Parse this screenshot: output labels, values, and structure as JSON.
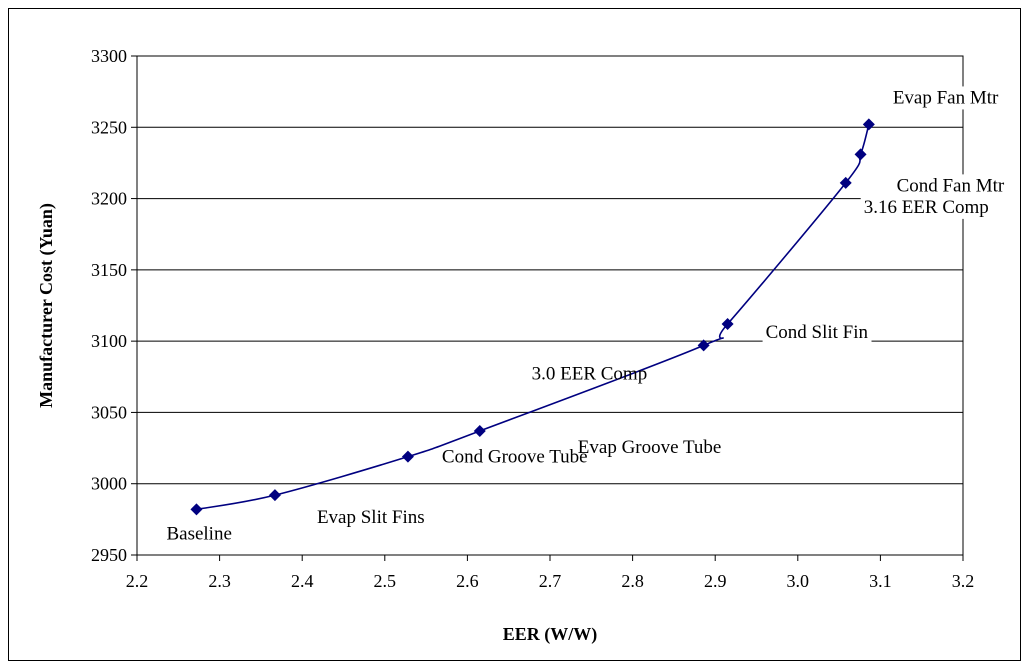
{
  "chart_data": {
    "type": "line",
    "title": "",
    "xlabel": "EER (W/W)",
    "ylabel": "Manufacturer Cost (Yuan)",
    "xlim": [
      2.2,
      3.2
    ],
    "ylim": [
      2950,
      3300
    ],
    "x_ticks": [
      "2.2",
      "2.3",
      "2.4",
      "2.5",
      "2.6",
      "2.7",
      "2.8",
      "2.9",
      "3.0",
      "3.1",
      "3.2"
    ],
    "y_ticks": [
      "2950",
      "3000",
      "3050",
      "3100",
      "3150",
      "3200",
      "3250",
      "3300"
    ],
    "grid": "horizontal",
    "legend": "none",
    "series_color": "#000080",
    "points": [
      {
        "x": 2.272,
        "y": 2982,
        "label": "Baseline"
      },
      {
        "x": 2.367,
        "y": 2992,
        "label": "Evap Slit Fins"
      },
      {
        "x": 2.528,
        "y": 3019,
        "label": "Cond Groove Tube"
      },
      {
        "x": 2.615,
        "y": 3037,
        "label": "Evap Groove Tube"
      },
      {
        "x": 2.886,
        "y": 3097,
        "label": "3.0 EER Comp"
      },
      {
        "x": 2.915,
        "y": 3112,
        "label": "Cond Slit Fin"
      },
      {
        "x": 3.058,
        "y": 3211,
        "label": "3.16 EER Comp"
      },
      {
        "x": 3.076,
        "y": 3231,
        "label": "Cond Fan Mtr"
      },
      {
        "x": 3.086,
        "y": 3252,
        "label": "Evap Fan Mtr"
      }
    ]
  }
}
